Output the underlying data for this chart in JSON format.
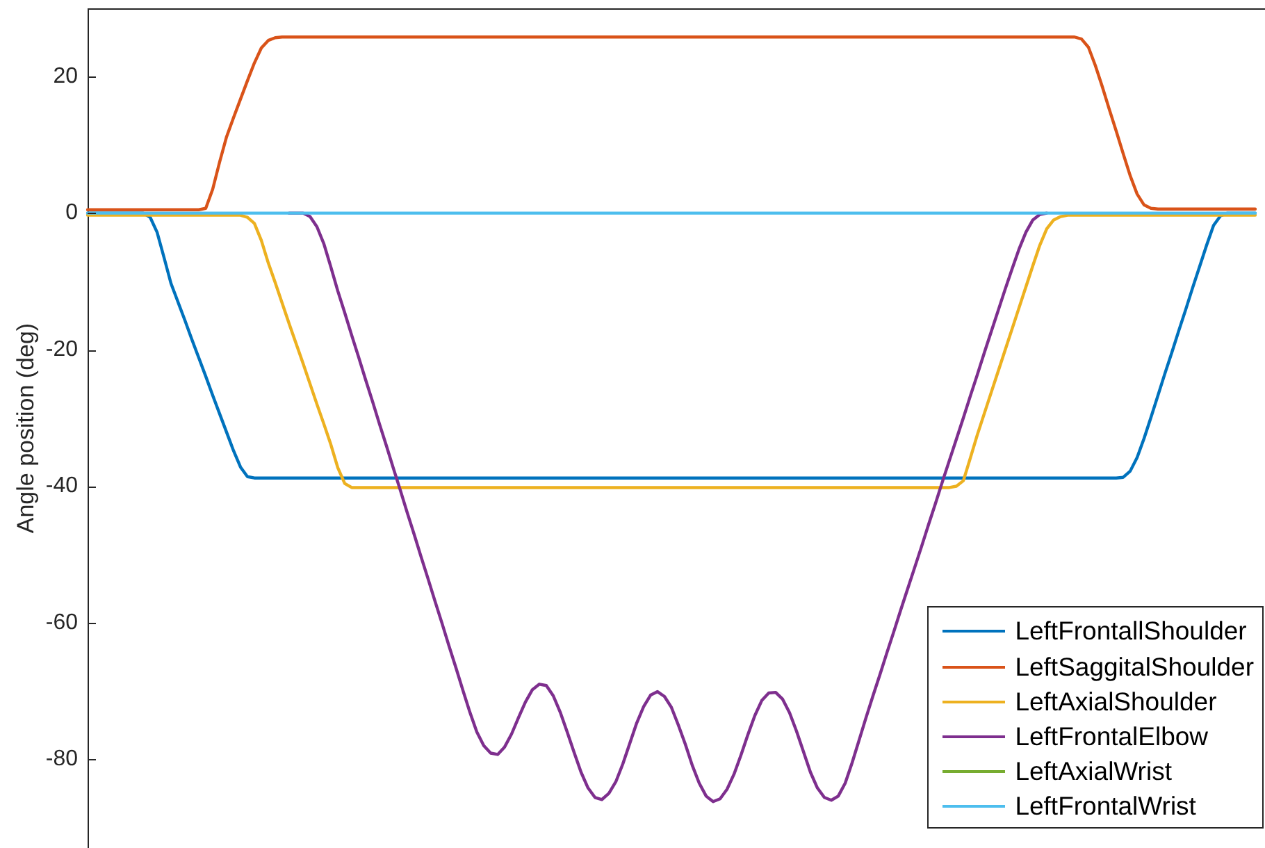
{
  "chart_data": {
    "type": "line",
    "ylabel": "Angle position (deg)",
    "ylim": [
      -93,
      30
    ],
    "yticks": [
      -80,
      -60,
      -40,
      -20,
      0,
      20
    ],
    "legend": "bottom right",
    "tick_labels": "y",
    "categories": [
      null,
      null,
      null,
      null,
      null,
      null,
      null,
      null,
      null,
      null,
      null,
      null,
      null,
      null,
      null,
      null,
      null,
      null,
      null,
      null,
      null,
      null,
      null,
      null,
      null,
      null,
      null,
      null,
      null,
      null,
      null,
      null,
      null,
      null,
      null,
      null,
      null,
      null,
      null,
      null,
      null,
      null,
      null,
      null,
      null,
      null,
      null,
      null,
      null,
      null,
      null,
      null,
      null,
      null,
      null,
      null,
      null,
      null,
      null,
      null,
      null,
      null,
      null,
      null,
      null,
      null,
      null,
      null,
      null,
      null,
      null,
      null,
      null,
      null,
      null,
      null,
      null,
      null,
      null,
      null,
      null,
      null,
      null,
      null,
      null,
      null,
      null,
      null,
      null,
      null,
      null,
      null,
      null,
      null,
      null,
      null,
      null,
      null,
      null,
      null,
      null,
      null,
      null,
      null,
      null,
      null,
      null,
      null,
      null,
      null,
      null,
      null,
      null,
      null,
      null,
      null,
      null,
      null,
      null,
      null,
      null,
      null,
      null,
      null,
      null,
      null,
      null,
      null,
      null,
      null,
      null,
      null,
      null,
      null,
      null,
      null,
      null,
      null,
      null,
      null,
      null,
      null,
      null,
      null,
      null,
      null,
      null,
      null,
      null,
      null,
      null,
      null,
      null,
      null,
      null,
      null,
      null,
      null,
      null,
      null,
      null,
      null,
      null,
      null,
      null,
      null,
      null,
      null,
      null
    ],
    "series": [
      {
        "name": "LeftFrontallShoulder",
        "color": "#0072bd",
        "values": [
          0,
          0,
          0,
          0,
          0,
          0,
          0,
          0,
          0,
          -0.6,
          -2.8,
          -6.5,
          -10.3,
          -13,
          -15.7,
          -18.5,
          -21.2,
          -23.9,
          -26.7,
          -29.4,
          -32.1,
          -34.8,
          -37.2,
          -38.6,
          -38.8,
          -38.8,
          -38.8,
          -38.8,
          -38.8,
          -38.8,
          -38.8,
          -38.8,
          -38.8,
          -38.8,
          -38.8,
          -38.8,
          -38.8,
          -38.8,
          -38.8,
          -38.8,
          -38.8,
          -38.8,
          -38.8,
          -38.8,
          -38.8,
          -38.8,
          -38.8,
          -38.8,
          -38.8,
          -38.8,
          -38.8,
          -38.8,
          -38.8,
          -38.8,
          -38.8,
          -38.8,
          -38.8,
          -38.8,
          -38.8,
          -38.8,
          -38.8,
          -38.8,
          -38.8,
          -38.8,
          -38.8,
          -38.8,
          -38.8,
          -38.8,
          -38.8,
          -38.8,
          -38.8,
          -38.8,
          -38.8,
          -38.8,
          -38.8,
          -38.8,
          -38.8,
          -38.8,
          -38.8,
          -38.8,
          -38.8,
          -38.8,
          -38.8,
          -38.8,
          -38.8,
          -38.8,
          -38.8,
          -38.8,
          -38.8,
          -38.8,
          -38.8,
          -38.8,
          -38.8,
          -38.8,
          -38.8,
          -38.8,
          -38.8,
          -38.8,
          -38.8,
          -38.8,
          -38.8,
          -38.8,
          -38.8,
          -38.8,
          -38.8,
          -38.8,
          -38.8,
          -38.8,
          -38.8,
          -38.8,
          -38.8,
          -38.8,
          -38.8,
          -38.8,
          -38.8,
          -38.8,
          -38.8,
          -38.8,
          -38.8,
          -38.8,
          -38.8,
          -38.8,
          -38.8,
          -38.8,
          -38.8,
          -38.8,
          -38.8,
          -38.8,
          -38.8,
          -38.8,
          -38.8,
          -38.8,
          -38.8,
          -38.8,
          -38.8,
          -38.8,
          -38.8,
          -38.8,
          -38.8,
          -38.8,
          -38.8,
          -38.8,
          -38.8,
          -38.8,
          -38.8,
          -38.8,
          -38.8,
          -38.8,
          -38.8,
          -38.7,
          -37.8,
          -35.8,
          -33,
          -29.9,
          -26.7,
          -23.5,
          -20.4,
          -17.2,
          -14.1,
          -10.9,
          -7.8,
          -4.7,
          -1.8,
          -0.4,
          0,
          0,
          0,
          0,
          0
        ]
      },
      {
        "name": "LeftSaggitalShoulder",
        "color": "#d95319",
        "values": [
          0.5,
          0.5,
          0.5,
          0.5,
          0.5,
          0.5,
          0.5,
          0.5,
          0.5,
          0.5,
          0.5,
          0.5,
          0.5,
          0.5,
          0.5,
          0.5,
          0.5,
          0.7,
          3.5,
          7.5,
          11.2,
          14,
          16.7,
          19.4,
          22,
          24.2,
          25.3,
          25.7,
          25.8,
          25.8,
          25.8,
          25.8,
          25.8,
          25.8,
          25.8,
          25.8,
          25.8,
          25.8,
          25.8,
          25.8,
          25.8,
          25.8,
          25.8,
          25.8,
          25.8,
          25.8,
          25.8,
          25.8,
          25.8,
          25.8,
          25.8,
          25.8,
          25.8,
          25.8,
          25.8,
          25.8,
          25.8,
          25.8,
          25.8,
          25.8,
          25.8,
          25.8,
          25.8,
          25.8,
          25.8,
          25.8,
          25.8,
          25.8,
          25.8,
          25.8,
          25.8,
          25.8,
          25.8,
          25.8,
          25.8,
          25.8,
          25.8,
          25.8,
          25.8,
          25.8,
          25.8,
          25.8,
          25.8,
          25.8,
          25.8,
          25.8,
          25.8,
          25.8,
          25.8,
          25.8,
          25.8,
          25.8,
          25.8,
          25.8,
          25.8,
          25.8,
          25.8,
          25.8,
          25.8,
          25.8,
          25.8,
          25.8,
          25.8,
          25.8,
          25.8,
          25.8,
          25.8,
          25.8,
          25.8,
          25.8,
          25.8,
          25.8,
          25.8,
          25.8,
          25.8,
          25.8,
          25.8,
          25.8,
          25.8,
          25.8,
          25.8,
          25.8,
          25.8,
          25.8,
          25.8,
          25.8,
          25.8,
          25.8,
          25.8,
          25.8,
          25.8,
          25.8,
          25.8,
          25.8,
          25.8,
          25.8,
          25.8,
          25.8,
          25.8,
          25.8,
          25.8,
          25.8,
          25.8,
          25.5,
          24.3,
          21.6,
          18.5,
          15.2,
          12,
          8.7,
          5.5,
          2.8,
          1.2,
          0.7,
          0.6,
          0.6,
          0.6,
          0.6,
          0.6,
          0.6,
          0.6,
          0.6,
          0.6,
          0.6,
          0.6,
          0.6,
          0.6,
          0.6,
          0.6
        ]
      },
      {
        "name": "LeftAxialShoulder",
        "color": "#edb120",
        "values": [
          -0.3,
          -0.3,
          -0.3,
          -0.3,
          -0.3,
          -0.3,
          -0.3,
          -0.3,
          -0.3,
          -0.3,
          -0.3,
          -0.3,
          -0.3,
          -0.3,
          -0.3,
          -0.3,
          -0.3,
          -0.3,
          -0.3,
          -0.3,
          -0.3,
          -0.3,
          -0.3,
          -0.6,
          -1.5,
          -4,
          -7.3,
          -10.2,
          -13.2,
          -16.2,
          -19.1,
          -22,
          -25,
          -28,
          -30.9,
          -33.9,
          -37.3,
          -39.6,
          -40.2,
          -40.2,
          -40.2,
          -40.2,
          -40.2,
          -40.2,
          -40.2,
          -40.2,
          -40.2,
          -40.2,
          -40.2,
          -40.2,
          -40.2,
          -40.2,
          -40.2,
          -40.2,
          -40.2,
          -40.2,
          -40.2,
          -40.2,
          -40.2,
          -40.2,
          -40.2,
          -40.2,
          -40.2,
          -40.2,
          -40.2,
          -40.2,
          -40.2,
          -40.2,
          -40.2,
          -40.2,
          -40.2,
          -40.2,
          -40.2,
          -40.2,
          -40.2,
          -40.2,
          -40.2,
          -40.2,
          -40.2,
          -40.2,
          -40.2,
          -40.2,
          -40.2,
          -40.2,
          -40.2,
          -40.2,
          -40.2,
          -40.2,
          -40.2,
          -40.2,
          -40.2,
          -40.2,
          -40.2,
          -40.2,
          -40.2,
          -40.2,
          -40.2,
          -40.2,
          -40.2,
          -40.2,
          -40.2,
          -40.2,
          -40.2,
          -40.2,
          -40.2,
          -40.2,
          -40.2,
          -40.2,
          -40.2,
          -40.2,
          -40.2,
          -40.2,
          -40.2,
          -40.2,
          -40.2,
          -40.2,
          -40.2,
          -40.2,
          -40.2,
          -40.2,
          -40.2,
          -40.2,
          -40.2,
          -40.2,
          -40.2,
          -40,
          -39.2,
          -35.9,
          -32.5,
          -29.4,
          -26.3,
          -23.2,
          -20.1,
          -17,
          -13.9,
          -10.8,
          -7.7,
          -4.7,
          -2.3,
          -1,
          -0.5,
          -0.3,
          -0.3,
          -0.3,
          -0.3,
          -0.3,
          -0.3,
          -0.3,
          -0.3,
          -0.3,
          -0.3,
          -0.3,
          -0.3,
          -0.3,
          -0.3,
          -0.3,
          -0.3,
          -0.3,
          -0.3,
          -0.3,
          -0.3,
          -0.3,
          -0.3,
          -0.3,
          -0.3,
          -0.3,
          -0.3,
          -0.3,
          -0.3
        ]
      },
      {
        "name": "LeftFrontalElbow",
        "color": "#7e2f8e",
        "values": [
          null,
          null,
          null,
          null,
          null,
          null,
          null,
          null,
          null,
          null,
          null,
          null,
          null,
          null,
          null,
          null,
          null,
          null,
          null,
          null,
          null,
          null,
          null,
          null,
          null,
          null,
          null,
          null,
          null,
          0,
          0,
          0,
          -0.5,
          -2,
          -4.5,
          -7.9,
          -11.4,
          -14.6,
          -17.9,
          -21.1,
          -24.4,
          -27.6,
          -30.9,
          -34.1,
          -37.4,
          -40.6,
          -43.9,
          -47.1,
          -50.4,
          -53.6,
          -56.9,
          -60.1,
          -63.4,
          -66.6,
          -69.9,
          -73.1,
          -76,
          -78,
          -79.1,
          -79.3,
          -78.2,
          -76.3,
          -73.9,
          -71.6,
          -69.8,
          -69,
          -69.2,
          -70.7,
          -73.1,
          -76,
          -79,
          -81.9,
          -84.2,
          -85.6,
          -85.9,
          -85,
          -83.3,
          -80.7,
          -77.7,
          -74.7,
          -72.3,
          -70.6,
          -70.1,
          -70.8,
          -72.4,
          -75,
          -77.8,
          -80.9,
          -83.5,
          -85.4,
          -86.2,
          -85.8,
          -84.4,
          -82.2,
          -79.4,
          -76.4,
          -73.6,
          -71.4,
          -70.3,
          -70.2,
          -71.2,
          -73.2,
          -75.9,
          -78.9,
          -81.9,
          -84.2,
          -85.6,
          -86,
          -85.4,
          -83.5,
          -80.5,
          -77.2,
          -73.9,
          -70.7,
          -67.6,
          -64.4,
          -61.3,
          -58.1,
          -55,
          -51.9,
          -48.8,
          -45.6,
          -42.5,
          -39.3,
          -36.2,
          -33.1,
          -30,
          -26.8,
          -23.7,
          -20.5,
          -17.4,
          -14.3,
          -11.2,
          -8.2,
          -5.3,
          -2.8,
          -1,
          -0.2,
          0,
          null,
          null,
          null,
          null,
          null,
          null,
          null,
          null,
          null,
          null,
          null,
          null,
          null,
          null,
          null,
          null,
          null,
          null,
          null,
          null,
          null,
          null,
          null,
          null,
          null,
          null,
          null,
          null,
          null,
          null
        ]
      },
      {
        "name": "LeftAxialWrist",
        "color": "#77ac30",
        "values": [
          null,
          null,
          null,
          null,
          null,
          null,
          null,
          null,
          null,
          null,
          null,
          null,
          null,
          null,
          null,
          null,
          null,
          null,
          null,
          null,
          null,
          null,
          null,
          null,
          null,
          null,
          null,
          null,
          null,
          null,
          null,
          null,
          null,
          null,
          null,
          null,
          null,
          null,
          null,
          null,
          null,
          null,
          null,
          null,
          null,
          null,
          null,
          null,
          null,
          null,
          null,
          null,
          null,
          null,
          null,
          null,
          null,
          null,
          null,
          null,
          null,
          null,
          null,
          null,
          null,
          null,
          null,
          null,
          null,
          null,
          null,
          null,
          null,
          null,
          null,
          null,
          null,
          null,
          null,
          null,
          null,
          null,
          null,
          null,
          null,
          null,
          null,
          null,
          null,
          null,
          null,
          null,
          null,
          null,
          null,
          null,
          null,
          null,
          null,
          null,
          null,
          null,
          null,
          null,
          null,
          null,
          null,
          null,
          null,
          null,
          null,
          null,
          null,
          null,
          null,
          null,
          null,
          null,
          null,
          null,
          null,
          null,
          null,
          null,
          null,
          null,
          null,
          null,
          null,
          null,
          null,
          null,
          null,
          null,
          null,
          null,
          null,
          null,
          null,
          null,
          null,
          null,
          null,
          null,
          null,
          null,
          null,
          null,
          null,
          null,
          null,
          null,
          null,
          null,
          null,
          null,
          null,
          null,
          null,
          null,
          null,
          null,
          null,
          null,
          null,
          null,
          null,
          null,
          null
        ]
      },
      {
        "name": "LeftFrontalWrist",
        "color": "#4dbeee",
        "values": [
          0,
          0,
          0,
          0,
          0,
          0,
          0,
          0,
          0,
          0,
          0,
          0,
          0,
          0,
          0,
          0,
          0,
          0,
          0,
          0,
          0,
          0,
          0,
          0,
          0,
          0,
          0,
          0,
          0,
          0,
          0,
          0,
          0,
          0,
          0,
          0,
          0,
          0,
          0,
          0,
          0,
          0,
          0,
          0,
          0,
          0,
          0,
          0,
          0,
          0,
          0,
          0,
          0,
          0,
          0,
          0,
          0,
          0,
          0,
          0,
          0,
          0,
          0,
          0,
          0,
          0,
          0,
          0,
          0,
          0,
          0,
          0,
          0,
          0,
          0,
          0,
          0,
          0,
          0,
          0,
          0,
          0,
          0,
          0,
          0,
          0,
          0,
          0,
          0,
          0,
          0,
          0,
          0,
          0,
          0,
          0,
          0,
          0,
          0,
          0,
          0,
          0,
          0,
          0,
          0,
          0,
          0,
          0,
          0,
          0,
          0,
          0,
          0,
          0,
          0,
          0,
          0,
          0,
          0,
          0,
          0,
          0,
          0,
          0,
          0,
          0,
          0,
          0,
          0,
          0,
          0,
          0,
          0,
          0,
          0,
          0,
          0,
          0,
          0,
          0,
          0,
          0,
          0,
          0,
          0,
          0,
          0,
          0,
          0,
          0,
          0,
          0,
          0,
          0,
          0,
          0,
          0,
          0,
          0,
          0,
          0,
          0,
          0,
          0,
          0,
          0,
          0,
          0,
          0
        ]
      }
    ]
  }
}
